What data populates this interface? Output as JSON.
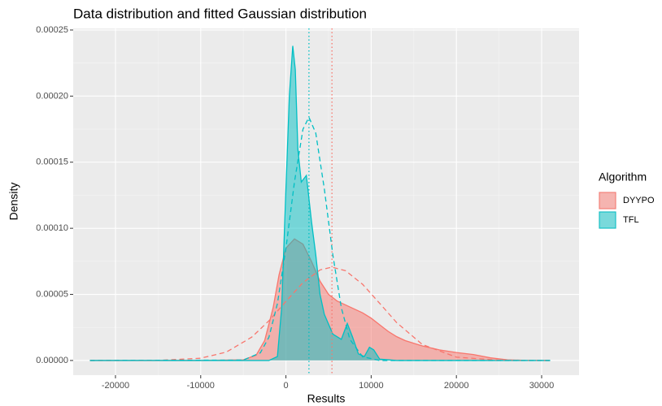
{
  "chart_data": {
    "type": "density",
    "title": "Data distribution and fitted Gaussian distribution",
    "x_label": "Results",
    "y_label": "Density",
    "legend_title": "Algorithm",
    "legend": "right",
    "xlim": [
      -24960,
      34390
    ],
    "ylim": [
      -1.11e-05,
      0.0002512
    ],
    "xticks": [
      -20000,
      -10000,
      0,
      10000,
      20000,
      30000
    ],
    "x_minor": [
      -15000,
      -5000,
      5000,
      15000,
      25000
    ],
    "yticks": [
      {
        "value": 0,
        "label": "0.00000"
      },
      {
        "value": 5e-05,
        "label": "0.00005"
      },
      {
        "value": 0.0001,
        "label": "0.00010"
      },
      {
        "value": 0.00015,
        "label": "0.00015"
      },
      {
        "value": 0.0002,
        "label": "0.00020"
      },
      {
        "value": 0.00025,
        "label": "0.00025"
      }
    ],
    "y_minor": [
      2.5e-05,
      7.5e-05,
      0.000125,
      0.000175,
      0.000225
    ],
    "grid": true,
    "series": [
      {
        "name": "DYYPO",
        "color": "#F8766D",
        "x": [
          -23000,
          -10000,
          -5000,
          -3500,
          -2500,
          -1500,
          -800,
          0,
          1000,
          2000,
          3000,
          4000,
          5000,
          6000,
          7000,
          8000,
          9000,
          10000,
          11000,
          12000,
          13000,
          14000,
          16000,
          18000,
          20000,
          22000,
          24000,
          26000,
          28000,
          31000
        ],
        "values": [
          0,
          0,
          5e-07,
          4e-06,
          1.5e-05,
          4e-05,
          6.5e-05,
          8.5e-05,
          9.2e-05,
          8.8e-05,
          7.5e-05,
          6e-05,
          5e-05,
          4.5e-05,
          4.2e-05,
          3.9e-05,
          3.6e-05,
          3.2e-05,
          2.7e-05,
          2.2e-05,
          1.8e-05,
          1.5e-05,
          1.1e-05,
          8e-06,
          6e-06,
          4.5e-06,
          2e-06,
          5e-07,
          1e-07,
          0
        ],
        "fit": {
          "mean": 5400,
          "x": [
            -23000,
            -20000,
            -15000,
            -10000,
            -7000,
            -4000,
            -2000,
            0,
            2000,
            4000,
            5400,
            7000,
            9000,
            11000,
            13000,
            16000,
            20000,
            25000,
            30000,
            31000
          ],
          "values": [
            0,
            0,
            1e-07,
            1.7e-06,
            6.3e-06,
            1.77e-05,
            3e-05,
            4.47e-05,
            5.89e-05,
            6.85e-05,
            7.06e-05,
            6.79e-05,
            5.76e-05,
            4.32e-05,
            2.86e-05,
            1.21e-05,
            2.5e-06,
            2e-07,
            0,
            0
          ]
        }
      },
      {
        "name": "TFL",
        "color": "#00BFC4",
        "x": [
          -23000,
          -2000,
          -1000,
          -500,
          0,
          400,
          800,
          1100,
          1400,
          1800,
          2400,
          3000,
          3500,
          4000,
          4500,
          5500,
          6500,
          7200,
          7800,
          8500,
          9200,
          9800,
          10300,
          11000,
          13000,
          31000
        ],
        "values": [
          0,
          0,
          3e-06,
          4e-05,
          0.00013,
          0.0002,
          0.000238,
          0.00022,
          0.00016,
          0.000135,
          0.00014,
          0.000105,
          8e-05,
          5e-05,
          3.5e-05,
          2e-05,
          1.6e-05,
          2.8e-05,
          1.8e-05,
          5e-06,
          3e-06,
          1e-05,
          8e-06,
          1e-06,
          0,
          0
        ],
        "fit": {
          "mean": 2700,
          "x": [
            -23000,
            -5000,
            -3000,
            -2000,
            -1000,
            0,
            1000,
            2000,
            2700,
            3500,
            4500,
            5500,
            6500,
            7500,
            9000,
            11000,
            31000
          ],
          "values": [
            0,
            3e-07,
            5.8e-06,
            1.75e-05,
            4.3e-05,
            8.49e-05,
            0.000135,
            0.000175,
            0.000184,
            0.000172,
            0.00013,
            8e-05,
            3.98e-05,
            1.6e-05,
            2.8e-06,
            0,
            0
          ]
        }
      }
    ]
  }
}
